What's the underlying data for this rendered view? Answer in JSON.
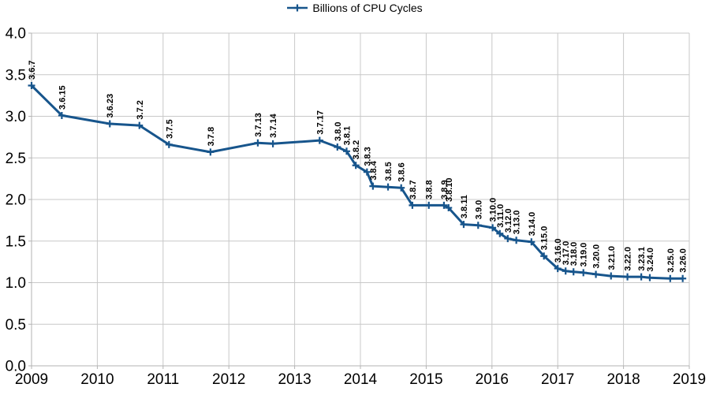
{
  "chart_data": {
    "type": "line",
    "title": "",
    "legend_entries": [
      "Billions of CPU Cycles"
    ],
    "legend_position": "top-center",
    "grid": true,
    "xlim": [
      2009,
      2019
    ],
    "ylim": [
      0,
      4
    ],
    "x_ticks": [
      2009,
      2010,
      2011,
      2012,
      2013,
      2014,
      2015,
      2016,
      2017,
      2018,
      2019
    ],
    "y_ticks": [
      4.0,
      3.5,
      3.0,
      2.5,
      2.0,
      1.5,
      1.0,
      0.5,
      0.0
    ],
    "y_tick_labels": [
      "4.0",
      "3.5",
      "3.0",
      "2.5",
      "2.0",
      "1.5",
      "1.0",
      "0.5",
      "0.0"
    ],
    "series": [
      {
        "name": "Billions of CPU Cycles",
        "color": "#17558C",
        "marker": "plus",
        "point_labels": [
          "3.6.7",
          "3.6.15",
          "3.6.23",
          "3.7.2",
          "3.7.5",
          "3.7.8",
          "3.7.13",
          "3.7.14",
          "3.7.17",
          "3.8.0",
          "3.8.1",
          "3.8.2",
          "3.8.3",
          "3.8.4",
          "3.8.5",
          "3.8.6",
          "3.8.7",
          "3.8.8",
          "3.8.9",
          "3.8.10",
          "3.8.11",
          "3.9.0",
          "3.10.0",
          "3.11.0",
          "3.12.0",
          "3.13.0",
          "3.14.0",
          "3.15.0",
          "3.16.0",
          "3.17.0",
          "3.18.0",
          "3.19.0",
          "3.20.0",
          "3.21.0",
          "3.22.0",
          "3.23.1",
          "3.24.0",
          "3.25.0",
          "3.26.0"
        ],
        "x": [
          2009.0,
          2009.46,
          2010.19,
          2010.64,
          2011.09,
          2011.72,
          2012.44,
          2012.67,
          2013.38,
          2013.65,
          2013.79,
          2013.93,
          2014.1,
          2014.19,
          2014.42,
          2014.62,
          2014.79,
          2015.04,
          2015.27,
          2015.34,
          2015.57,
          2015.79,
          2016.01,
          2016.12,
          2016.24,
          2016.37,
          2016.6,
          2016.79,
          2017.0,
          2017.12,
          2017.24,
          2017.39,
          2017.58,
          2017.81,
          2018.06,
          2018.27,
          2018.4,
          2018.71,
          2018.9
        ],
        "values": [
          3.37,
          3.01,
          2.91,
          2.89,
          2.66,
          2.57,
          2.68,
          2.67,
          2.71,
          2.63,
          2.58,
          2.41,
          2.33,
          2.16,
          2.15,
          2.14,
          1.93,
          1.93,
          1.93,
          1.9,
          1.7,
          1.69,
          1.66,
          1.59,
          1.53,
          1.51,
          1.49,
          1.32,
          1.17,
          1.14,
          1.13,
          1.12,
          1.1,
          1.08,
          1.07,
          1.07,
          1.06,
          1.05,
          1.05
        ]
      }
    ],
    "colors": {
      "series": "#17558C",
      "grid": "#c8c8c8",
      "axis": "#b3b3b3",
      "tick_text": "#000000",
      "point_label_text": "#000000",
      "background": "#ffffff"
    }
  }
}
